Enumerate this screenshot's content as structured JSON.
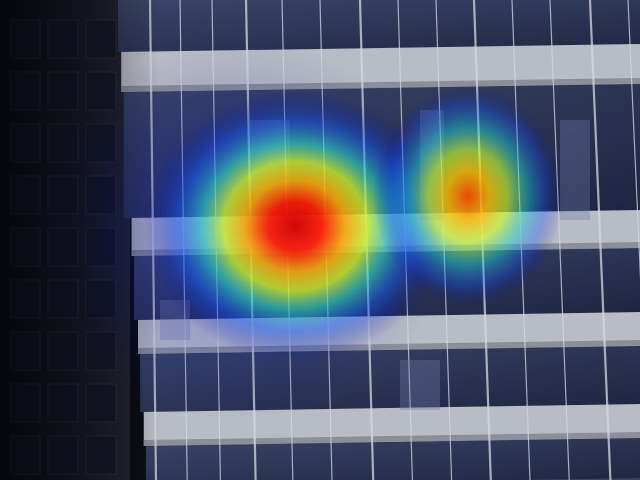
{
  "image": {
    "description_type": "photograph",
    "colors": {
      "sky_dark": "#0b0c14",
      "left_building": "#1a1c26",
      "facade_base": "#4b5260",
      "spandrel": "#b8bcc4",
      "spandrel_shadow": "#8a8f9a",
      "glass": "#2b3552",
      "glass_highlight": "#6f7fa8",
      "mullion": "#d6d9de"
    },
    "heatmap": {
      "palette": "jet",
      "hotspots": [
        {
          "name": "primary",
          "intensity": 1.0
        },
        {
          "name": "secondary",
          "intensity": 0.72
        }
      ]
    }
  }
}
